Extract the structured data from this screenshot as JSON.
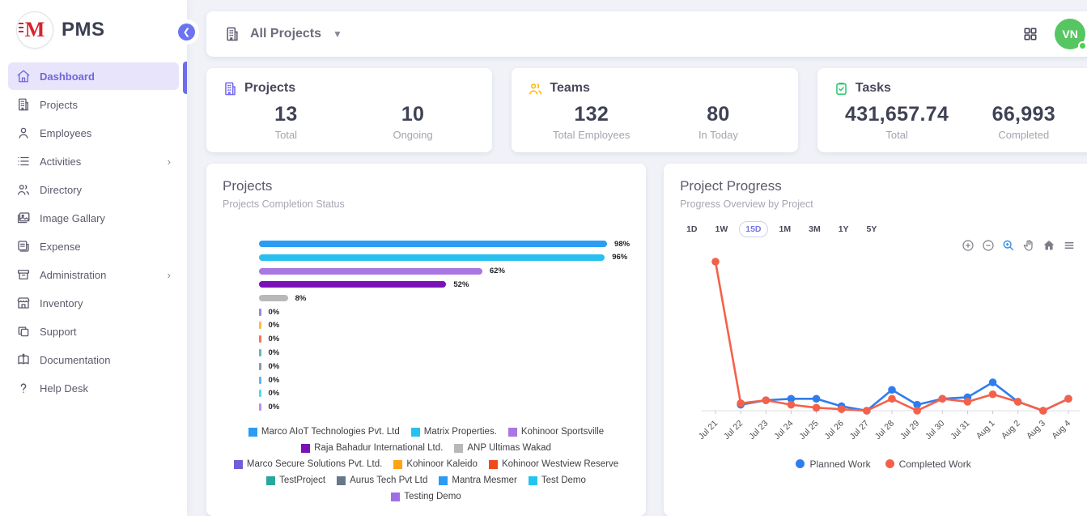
{
  "app": {
    "name": "PMS",
    "logo_letter": "M"
  },
  "sidebar": {
    "items": [
      {
        "label": "Dashboard",
        "active": true
      },
      {
        "label": "Projects",
        "active": false
      },
      {
        "label": "Employees",
        "active": false
      },
      {
        "label": "Activities",
        "active": false,
        "has_submenu": true
      },
      {
        "label": "Directory",
        "active": false
      },
      {
        "label": "Image Gallary",
        "active": false
      },
      {
        "label": "Expense",
        "active": false
      },
      {
        "label": "Administration",
        "active": false,
        "has_submenu": true
      },
      {
        "label": "Inventory",
        "active": false
      },
      {
        "label": "Support",
        "active": false
      },
      {
        "label": "Documentation",
        "active": false
      },
      {
        "label": "Help Desk",
        "active": false
      }
    ]
  },
  "topbar": {
    "project_filter": "All Projects",
    "avatar_initials": "VN"
  },
  "stats": [
    {
      "title": "Projects",
      "icon": "building-icon",
      "icon_color": "#7367f0",
      "metrics": [
        {
          "value": "13",
          "label": "Total"
        },
        {
          "value": "10",
          "label": "Ongoing"
        }
      ]
    },
    {
      "title": "Teams",
      "icon": "users-icon",
      "icon_color": "#ffb400",
      "metrics": [
        {
          "value": "132",
          "label": "Total Employees"
        },
        {
          "value": "80",
          "label": "In Today"
        }
      ]
    },
    {
      "title": "Tasks",
      "icon": "clipboard-check-icon",
      "icon_color": "#28c76f",
      "metrics": [
        {
          "value": "431,657.74",
          "label": "Total"
        },
        {
          "value": "66,993",
          "label": "Completed"
        }
      ]
    }
  ],
  "chart_data": [
    {
      "type": "bar",
      "orientation": "horizontal",
      "title": "Projects",
      "subtitle": "Projects Completion Status",
      "value_suffix": "%",
      "xlim": [
        0,
        100
      ],
      "categories": [
        "Marco AIoT Technologies Pvt. Ltd",
        "Matrix Properties.",
        "Kohinoor Sportsville",
        "Raja Bahadur International Ltd.",
        "ANP Ultimas Wakad",
        "Marco Secure Solutions Pvt. Ltd.",
        "Kohinoor Kaleido",
        "Kohinoor Westview Reserve",
        "TestProject",
        "Aurus Tech Pvt Ltd",
        "Mantra Mesmer",
        "Test Demo",
        "Testing Demo"
      ],
      "values": [
        98,
        96,
        62,
        52,
        8,
        0,
        0,
        0,
        0,
        0,
        0,
        0,
        0
      ],
      "colors": [
        "#2b9cf4",
        "#29c0ef",
        "#a877e2",
        "#7a12b8",
        "#b8b8b8",
        "#6f5fd6",
        "#ffa216",
        "#f04a1c",
        "#2aa79b",
        "#66788a",
        "#2b9cf4",
        "#24c4f0",
        "#a06ee4"
      ],
      "legend_position": "bottom"
    },
    {
      "type": "line",
      "title": "Project Progress",
      "subtitle": "Progress Overview by Project",
      "range_buttons": [
        "1D",
        "1W",
        "15D",
        "1M",
        "3M",
        "1Y",
        "5Y"
      ],
      "selected_range": "15D",
      "toolbar_icons": [
        "zoom-in-icon",
        "zoom-out-icon",
        "box-zoom-icon",
        "pan-icon",
        "home-icon",
        "menu-icon"
      ],
      "x": [
        "Jul 21",
        "Jul 22",
        "Jul 23",
        "Jul 24",
        "Jul 25",
        "Jul 26",
        "Jul 27",
        "Jul 28",
        "Jul 29",
        "Jul 30",
        "Jul 31",
        "Aug 1",
        "Aug 2",
        "Aug 3",
        "Aug 4"
      ],
      "series": [
        {
          "name": "Planned Work",
          "color": "#2f7ded",
          "values": [
            null,
            4,
            7,
            8,
            8,
            3,
            0,
            14,
            4,
            8,
            9,
            19,
            6,
            0,
            8
          ]
        },
        {
          "name": "Completed Work",
          "color": "#f4614a",
          "values": [
            100,
            5,
            7,
            4,
            2,
            1,
            0,
            8,
            0,
            8,
            6,
            11,
            6,
            0,
            8
          ]
        }
      ],
      "ylim": [
        0,
        100
      ],
      "grid": false,
      "legend_position": "bottom"
    }
  ]
}
